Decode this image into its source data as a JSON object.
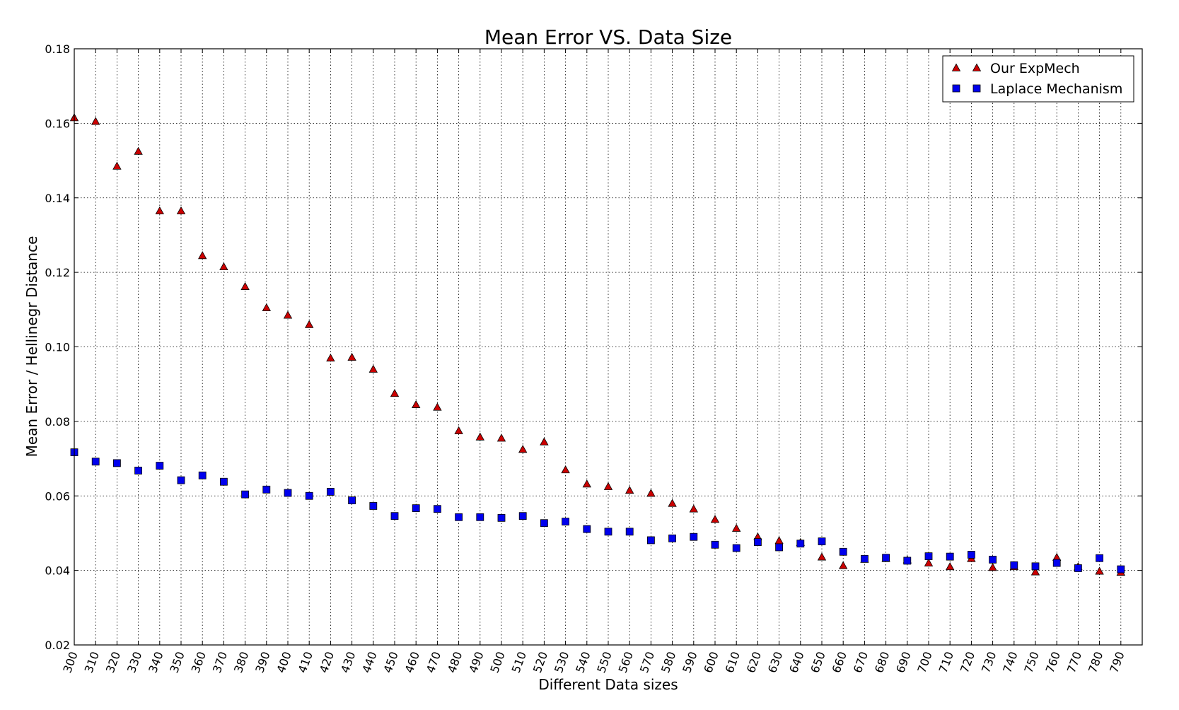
{
  "chart_data": {
    "type": "scatter",
    "title": "Mean Error VS. Data Size",
    "xlabel": "Different Data sizes",
    "ylabel": "Mean Error / Hellinegr Distance",
    "x": [
      300,
      310,
      320,
      330,
      340,
      350,
      360,
      370,
      380,
      390,
      400,
      410,
      420,
      430,
      440,
      450,
      460,
      470,
      480,
      490,
      500,
      510,
      520,
      530,
      540,
      550,
      560,
      570,
      580,
      590,
      600,
      610,
      620,
      630,
      640,
      650,
      660,
      670,
      680,
      690,
      700,
      710,
      720,
      730,
      740,
      750,
      760,
      770,
      780,
      790
    ],
    "xticks": [
      "300",
      "310",
      "320",
      "330",
      "340",
      "350",
      "360",
      "370",
      "380",
      "390",
      "400",
      "410",
      "420",
      "430",
      "440",
      "450",
      "460",
      "470",
      "480",
      "490",
      "500",
      "510",
      "520",
      "530",
      "540",
      "550",
      "560",
      "570",
      "580",
      "590",
      "600",
      "610",
      "620",
      "630",
      "640",
      "650",
      "660",
      "670",
      "680",
      "690",
      "700",
      "710",
      "720",
      "730",
      "740",
      "750",
      "760",
      "770",
      "780",
      "790"
    ],
    "yticks": [
      "0.02",
      "0.04",
      "0.06",
      "0.08",
      "0.10",
      "0.12",
      "0.14",
      "0.16",
      "0.18"
    ],
    "xlim": [
      300,
      800
    ],
    "ylim": [
      0.02,
      0.18
    ],
    "grid": true,
    "legend_position": "top-right",
    "series": [
      {
        "name": "Our ExpMech",
        "marker": "triangle",
        "color": "#cc0000",
        "values": [
          0.1615,
          0.1605,
          0.1485,
          0.1525,
          0.1365,
          0.1365,
          0.1245,
          0.1215,
          0.1162,
          0.1105,
          0.1085,
          0.106,
          0.097,
          0.0972,
          0.094,
          0.0875,
          0.0845,
          0.0838,
          0.0775,
          0.0758,
          0.0755,
          0.0725,
          0.0745,
          0.067,
          0.0632,
          0.0625,
          0.0615,
          0.0607,
          0.058,
          0.0565,
          0.0537,
          0.0513,
          0.049,
          0.048,
          0.0475,
          0.0436,
          0.0413,
          0.043,
          0.0432,
          0.0428,
          0.042,
          0.041,
          0.0432,
          0.0408,
          0.041,
          0.0396,
          0.0435,
          0.041,
          0.0398,
          0.0395
        ]
      },
      {
        "name": "Laplace Mechanism",
        "marker": "square",
        "color": "#0000ee",
        "values": [
          0.0717,
          0.0692,
          0.0688,
          0.0668,
          0.0681,
          0.0642,
          0.0655,
          0.0638,
          0.0604,
          0.0617,
          0.0608,
          0.06,
          0.0611,
          0.0588,
          0.0573,
          0.0546,
          0.0567,
          0.0565,
          0.0543,
          0.0543,
          0.0541,
          0.0546,
          0.0527,
          0.0531,
          0.0511,
          0.0504,
          0.0504,
          0.0481,
          0.0486,
          0.049,
          0.0469,
          0.046,
          0.0476,
          0.0462,
          0.0472,
          0.0478,
          0.045,
          0.0431,
          0.0434,
          0.0426,
          0.0438,
          0.0437,
          0.0442,
          0.0429,
          0.0414,
          0.0411,
          0.042,
          0.0406,
          0.0433,
          0.0403
        ]
      }
    ]
  }
}
